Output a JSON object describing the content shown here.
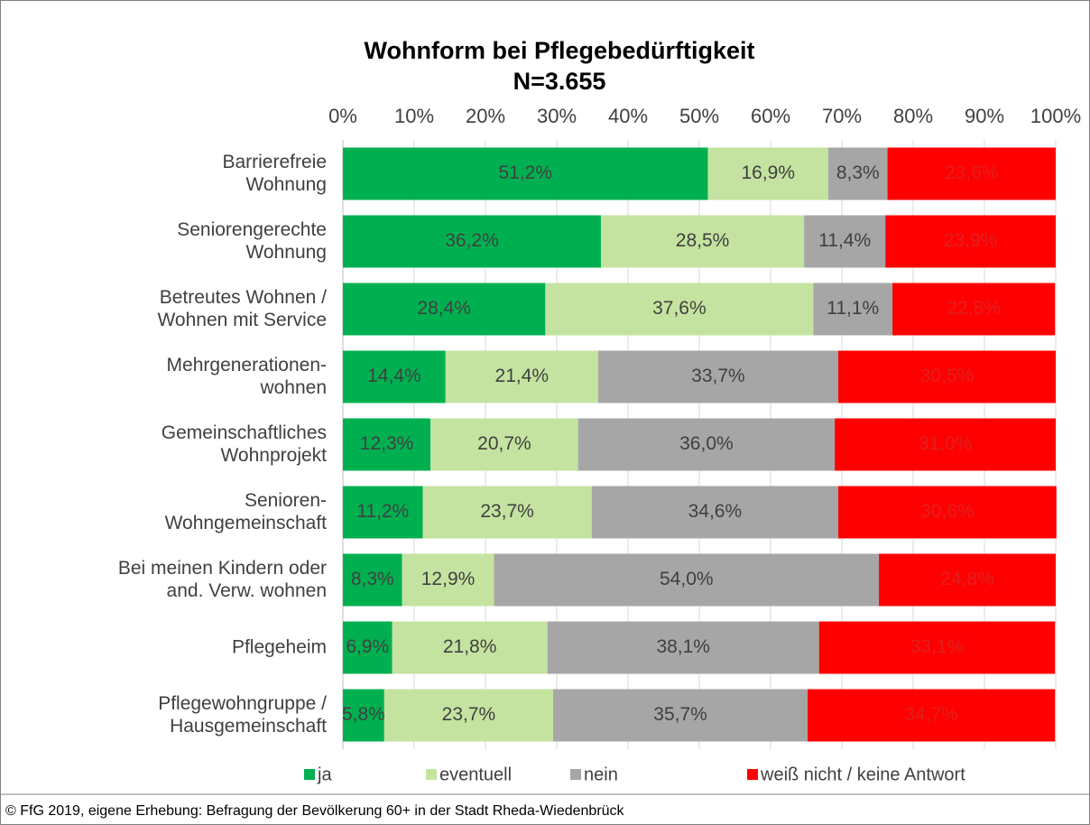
{
  "chart_data": {
    "type": "stacked_barh",
    "title": "Wohnform bei Pflegebedürftigkeit",
    "subtitle": "N=3.655",
    "categories": [
      "Barrierefreie\nWohnung",
      "Seniorengerechte\nWohnung",
      "Betreutes Wohnen /\nWohnen mit Service",
      "Mehrgenerationen-\nwohnen",
      "Gemeinschaftliches\nWohnprojekt",
      "Senioren-\nWohngemeinschaft",
      "Bei meinen Kindern oder\nand. Verw. wohnen",
      "Pflegeheim",
      "Pflegewohngruppe /\nHausgemeinschaft"
    ],
    "series": [
      {
        "name": "ja",
        "color": "#00b050",
        "values": [
          51.2,
          36.2,
          28.4,
          14.4,
          12.3,
          11.2,
          8.3,
          6.9,
          5.8
        ],
        "value_labels": [
          "51,2%",
          "36,2%",
          "28,4%",
          "14,4%",
          "12,3%",
          "11,2%",
          "8,3%",
          "6,9%",
          "5,8%"
        ]
      },
      {
        "name": "eventuell",
        "color": "#c4e3a0",
        "values": [
          16.9,
          28.5,
          37.6,
          21.4,
          20.7,
          23.7,
          12.9,
          21.8,
          23.7
        ],
        "value_labels": [
          "16,9%",
          "28,5%",
          "37,6%",
          "21,4%",
          "20,7%",
          "23,7%",
          "12,9%",
          "21,8%",
          "23,7%"
        ]
      },
      {
        "name": "nein",
        "color": "#a6a6a6",
        "values": [
          8.3,
          11.4,
          11.1,
          33.7,
          36.0,
          34.6,
          54.0,
          38.1,
          35.7
        ],
        "value_labels": [
          "8,3%",
          "11,4%",
          "11,1%",
          "33,7%",
          "36,0%",
          "34,6%",
          "54,0%",
          "38,1%",
          "35,7%"
        ]
      },
      {
        "name": "weiß nicht / keine Antwort",
        "color": "#ff0000",
        "values": [
          23.6,
          23.9,
          22.8,
          30.5,
          31.0,
          30.6,
          24.8,
          33.1,
          34.7
        ],
        "value_labels": [
          "23,6%",
          "23,9%",
          "22,8%",
          "30,5%",
          "31,0%",
          "30,6%",
          "24,8%",
          "33,1%",
          "34,7%"
        ]
      }
    ],
    "xlim": [
      0,
      100
    ],
    "xticks": [
      {
        "value": 0,
        "label": "0%"
      },
      {
        "value": 10,
        "label": "10%"
      },
      {
        "value": 20,
        "label": "20%"
      },
      {
        "value": 30,
        "label": "30%"
      },
      {
        "value": 40,
        "label": "40%"
      },
      {
        "value": 50,
        "label": "50%"
      },
      {
        "value": 60,
        "label": "60%"
      },
      {
        "value": 70,
        "label": "70%"
      },
      {
        "value": 80,
        "label": "80%"
      },
      {
        "value": 90,
        "label": "90%"
      },
      {
        "value": 100,
        "label": "100%"
      }
    ],
    "grid": true,
    "legend": "bottom",
    "footer": "© FfG 2019, eigene Erhebung: Befragung der Bevölkerung 60+ in der Stadt Rheda-Wiedenbrück"
  }
}
